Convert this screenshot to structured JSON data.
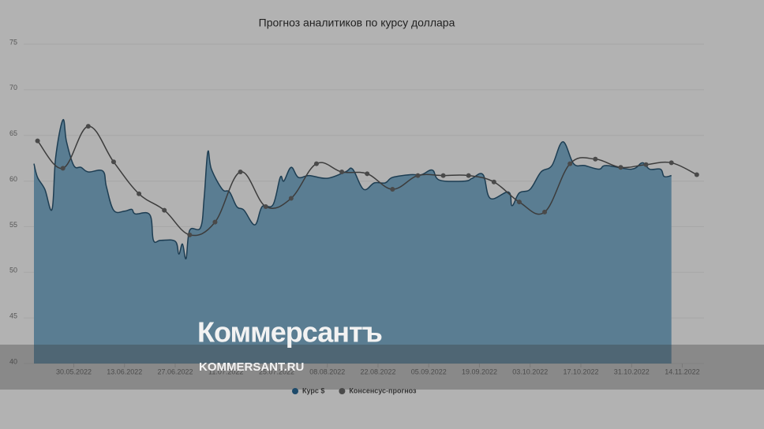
{
  "chart_data": {
    "type": "line",
    "title": "Прогноз аналитиков по курсу доллара",
    "xlim": [
      "19.05.2022",
      "20.11.2022"
    ],
    "xticks": [
      "30.05.2022",
      "13.06.2022",
      "27.06.2022",
      "11.07.2022",
      "25.07.2022",
      "08.08.2022",
      "22.08.2022",
      "05.09.2022",
      "19.09.2022",
      "03.10.2022",
      "17.10.2022",
      "31.10.2022",
      "14.11.2022"
    ],
    "ylim": [
      40,
      75
    ],
    "yticks": [
      40,
      45,
      50,
      55,
      60,
      65,
      70,
      75
    ],
    "grid": true,
    "legend": "bottom",
    "series": [
      {
        "name": "Курс $",
        "type": "area",
        "color": "#5a7d92",
        "line_color": "#1d3d52",
        "x": [
          "19.05.2022",
          "20.05.2022",
          "22.05.2022",
          "24.05.2022",
          "25.05.2022",
          "27.05.2022",
          "28.05.2022",
          "30.05.2022",
          "01.06.2022",
          "03.06.2022",
          "07.06.2022",
          "08.06.2022",
          "10.06.2022",
          "13.06.2022",
          "15.06.2022",
          "16.06.2022",
          "20.06.2022",
          "21.06.2022",
          "23.06.2022",
          "27.06.2022",
          "28.06.2022",
          "29.06.2022",
          "30.06.2022",
          "01.07.2022",
          "04.07.2022",
          "05.07.2022",
          "06.07.2022",
          "07.07.2022",
          "10.07.2022",
          "12.07.2022",
          "14.07.2022",
          "16.07.2022",
          "19.07.2022",
          "21.07.2022",
          "24.07.2022",
          "26.07.2022",
          "27.07.2022",
          "29.07.2022",
          "31.07.2022",
          "03.08.2022",
          "08.08.2022",
          "13.08.2022",
          "15.08.2022",
          "18.08.2022",
          "21.08.2022",
          "24.08.2022",
          "26.08.2022",
          "31.08.2022",
          "03.09.2022",
          "06.09.2022",
          "08.09.2022",
          "15.09.2022",
          "17.09.2022",
          "20.09.2022",
          "22.09.2022",
          "27.09.2022",
          "28.09.2022",
          "30.09.2022",
          "03.10.2022",
          "06.10.2022",
          "09.10.2022",
          "12.10.2022",
          "15.10.2022",
          "18.10.2022",
          "22.10.2022",
          "24.10.2022",
          "31.10.2022",
          "03.11.2022",
          "05.11.2022",
          "08.11.2022",
          "09.11.2022",
          "11.11.2022"
        ],
        "values": [
          61.9,
          60.4,
          59.1,
          56.9,
          62.6,
          66.7,
          64.3,
          61.7,
          61.5,
          61.0,
          61.1,
          59.4,
          56.8,
          56.7,
          56.9,
          56.4,
          56.3,
          53.5,
          53.5,
          53.4,
          52.0,
          53.1,
          51.5,
          54.6,
          54.9,
          58.2,
          63.2,
          61.3,
          59.1,
          58.8,
          57.2,
          56.8,
          55.2,
          57.2,
          57.4,
          60.4,
          60.0,
          61.5,
          60.4,
          60.6,
          60.3,
          61.0,
          61.3,
          59.1,
          59.8,
          59.8,
          60.4,
          60.7,
          60.7,
          61.2,
          60.1,
          60.0,
          60.3,
          60.7,
          58.1,
          58.8,
          57.3,
          58.7,
          59.1,
          61.0,
          61.7,
          64.3,
          61.9,
          61.7,
          61.3,
          61.7,
          61.3,
          62.0,
          61.3,
          61.3,
          60.5,
          60.6
        ]
      },
      {
        "name": "Консенсус-прогноз",
        "type": "line",
        "color": "#3c3c3c",
        "x": [
          "20.05.2022",
          "27.05.2022",
          "03.06.2022",
          "10.06.2022",
          "17.06.2022",
          "24.06.2022",
          "01.07.2022",
          "08.07.2022",
          "15.07.2022",
          "22.07.2022",
          "29.07.2022",
          "05.08.2022",
          "12.08.2022",
          "19.08.2022",
          "26.08.2022",
          "02.09.2022",
          "09.09.2022",
          "16.09.2022",
          "23.09.2022",
          "30.09.2022",
          "07.10.2022",
          "14.10.2022",
          "21.10.2022",
          "28.10.2022",
          "04.11.2022",
          "11.11.2022",
          "18.11.2022"
        ],
        "values": [
          64.4,
          61.4,
          66.0,
          62.1,
          58.6,
          56.8,
          54.1,
          55.5,
          61.0,
          57.2,
          58.1,
          61.9,
          61.0,
          60.8,
          59.1,
          60.6,
          60.6,
          60.6,
          59.9,
          57.7,
          56.6,
          61.9,
          62.4,
          61.5,
          61.8,
          62.0,
          60.7
        ]
      }
    ]
  },
  "watermark": {
    "brand": "Коммерсантъ",
    "url": "KOMMERSANT.RU"
  }
}
